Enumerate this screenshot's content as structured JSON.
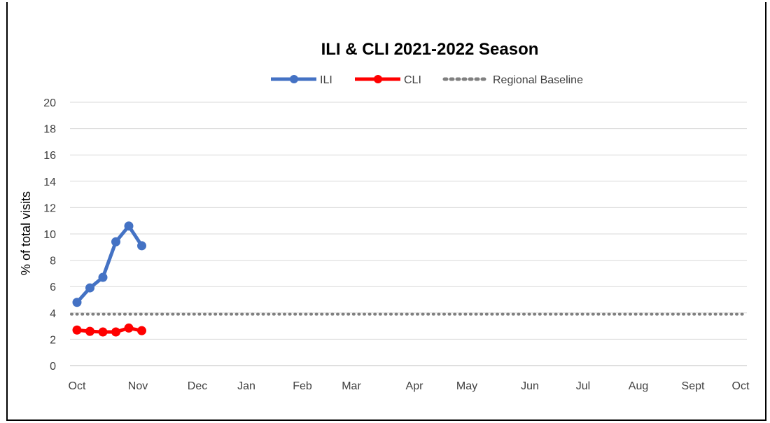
{
  "chart_data": {
    "type": "line",
    "title": "ILI & CLI 2021-2022 Season",
    "ylabel": "% of total visits",
    "xlabel": "",
    "ylim": [
      0,
      20
    ],
    "yticks": [
      "0",
      "2",
      "4",
      "6",
      "8",
      "10",
      "12",
      "14",
      "16",
      "18",
      "20"
    ],
    "month_labels": [
      "Oct",
      "Nov",
      "Dec",
      "Jan",
      "Feb",
      "Mar",
      "Apr",
      "May",
      "Jun",
      "Jul",
      "Aug",
      "Sept",
      "Oct"
    ],
    "grid": "horizontal",
    "legend_position": "top-center",
    "series": [
      {
        "name": "ILI",
        "color": "#4472C4",
        "style": "line-with-markers",
        "week_index": [
          0,
          1,
          2,
          3,
          4,
          5
        ],
        "values": [
          4.8,
          5.9,
          6.7,
          9.4,
          10.6,
          9.1
        ]
      },
      {
        "name": "CLI",
        "color": "#FF0000",
        "style": "line-with-markers",
        "week_index": [
          0,
          1,
          2,
          3,
          4,
          5
        ],
        "values": [
          2.7,
          2.6,
          2.55,
          2.55,
          2.85,
          2.65
        ]
      },
      {
        "name": "Regional Baseline",
        "color": "#808080",
        "style": "dotted",
        "constant": 3.9
      }
    ]
  }
}
